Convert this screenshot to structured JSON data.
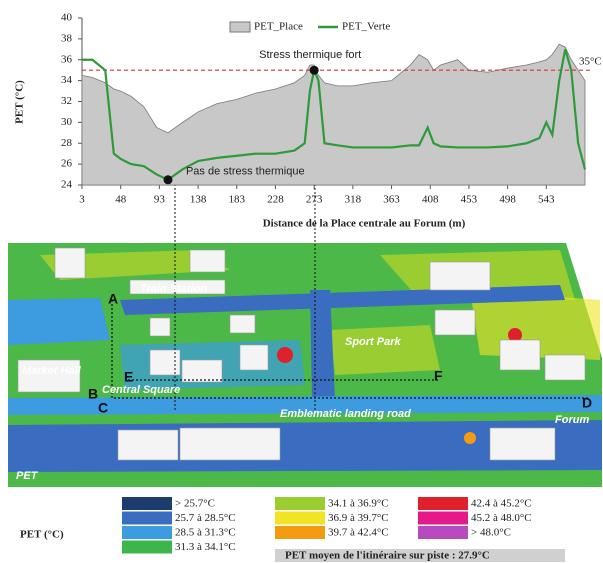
{
  "chart_data": {
    "type": "area_line",
    "x_label": "Distance de la Place centrale au Forum (m)",
    "y_label": "PET (°C)",
    "x": [
      3,
      15,
      30,
      40,
      48,
      60,
      75,
      90,
      103,
      120,
      138,
      160,
      183,
      205,
      228,
      250,
      262,
      268,
      273,
      278,
      285,
      300,
      318,
      340,
      363,
      385,
      395,
      405,
      412,
      420,
      440,
      453,
      475,
      498,
      520,
      535,
      543,
      550,
      558,
      565,
      572,
      580,
      588
    ],
    "series": [
      {
        "name": "PET_Place",
        "color": "#c8c8c8",
        "values": [
          34.5,
          34.3,
          33.8,
          33.2,
          33,
          32.5,
          31.5,
          29.5,
          29,
          30,
          31,
          31.8,
          32.2,
          32.8,
          33.2,
          33.8,
          34.5,
          35.5,
          35.5,
          34.5,
          33.8,
          33.5,
          33.5,
          33.8,
          34,
          35.5,
          36.5,
          36,
          35,
          35.5,
          36,
          35,
          34.8,
          35.2,
          35.5,
          35.8,
          36,
          36.5,
          37.5,
          37.2,
          36,
          35,
          34
        ]
      },
      {
        "name": "PET_Verte",
        "color": "#2e9a3a",
        "values": [
          36,
          36,
          35,
          27,
          26.5,
          26,
          25.8,
          25,
          24.5,
          25.5,
          26.3,
          26.6,
          26.8,
          27,
          27,
          27.3,
          28,
          33,
          35,
          34,
          28,
          27.8,
          27.6,
          27.6,
          27.6,
          27.8,
          27.8,
          29.5,
          28,
          27.7,
          27.6,
          27.6,
          27.6,
          27.7,
          28,
          28.5,
          30,
          28.8,
          34,
          37,
          35,
          28,
          25.5
        ]
      }
    ],
    "xlim": [
      3,
      588
    ],
    "ylim": [
      24,
      40
    ],
    "xticks": [
      3,
      48,
      93,
      138,
      183,
      228,
      273,
      318,
      363,
      408,
      453,
      498,
      543
    ],
    "yticks": [
      24,
      26,
      28,
      30,
      32,
      34,
      36,
      38,
      40
    ],
    "threshold": {
      "value": 35,
      "label": "35°C",
      "color": "#e03030"
    },
    "annotations": [
      {
        "text": "Stress thermique fort",
        "x": 273,
        "y": 35
      },
      {
        "text": "Pas de stress thermique",
        "x": 103,
        "y": 24.5
      }
    ]
  },
  "map": {
    "labels": [
      "Train Station",
      "Sport Park",
      "Market Hall",
      "Central Square",
      "Emblematic landing road",
      "Forum",
      "PET"
    ],
    "letters": [
      "A",
      "B",
      "C",
      "D",
      "E",
      "F"
    ],
    "legend": {
      "title": "PET (°C)",
      "items": [
        {
          "label": "> 25.7°C",
          "color": "#1d3c6e"
        },
        {
          "label": "25.7 à 28.5°C",
          "color": "#3a6cc0"
        },
        {
          "label": "28.5 à 31.3°C",
          "color": "#3d9be0"
        },
        {
          "label": "31.3 à 34.1°C",
          "color": "#3cb54a"
        },
        {
          "label": "34.1 à 36.9°C",
          "color": "#9acd32"
        },
        {
          "label": "36.9 à 39.7°C",
          "color": "#f2e424"
        },
        {
          "label": "39.7 à 42.4°C",
          "color": "#f39c12"
        },
        {
          "label": "42.4 à 45.2°C",
          "color": "#e0202a"
        },
        {
          "label": "45.2 à 48.0°C",
          "color": "#e6198a"
        },
        {
          "label": "> 48.0°C",
          "color": "#b84ac0"
        }
      ],
      "note": "PET moyen de l'itinéraire sur piste : 27.9°C"
    }
  }
}
